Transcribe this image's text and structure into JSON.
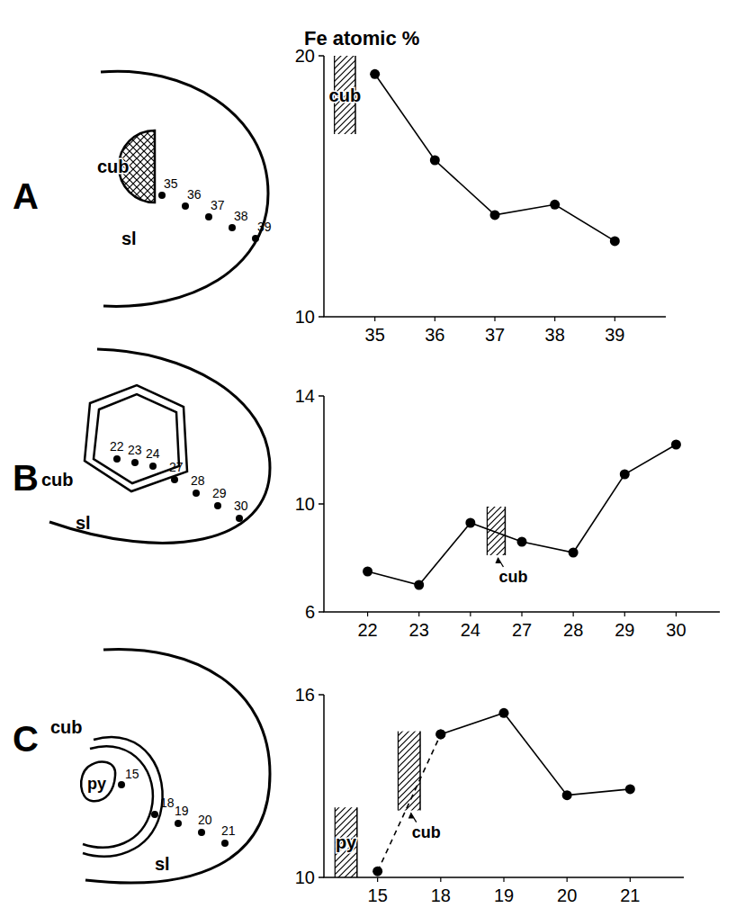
{
  "header": {
    "title": "Fe atomic %"
  },
  "chart_data": [
    {
      "type": "line",
      "categories": [
        "35",
        "36",
        "37",
        "38",
        "39"
      ],
      "values": [
        19.3,
        16.0,
        13.9,
        14.3,
        12.9
      ],
      "ylim": [
        10,
        20
      ],
      "yticks": [
        10,
        20
      ],
      "line_style": "solid",
      "marker": "circle",
      "annotations": [
        {
          "text": "cub",
          "x": -0.5,
          "y": [
            17,
            20
          ]
        }
      ]
    },
    {
      "type": "line",
      "categories": [
        "22",
        "23",
        "24",
        "27",
        "28",
        "29",
        "30"
      ],
      "values": [
        7.5,
        7.0,
        9.3,
        8.6,
        8.2,
        11.1,
        12.2
      ],
      "ylim": [
        6,
        14
      ],
      "yticks": [
        6,
        10,
        14
      ],
      "line_style": "solid",
      "marker": "circle",
      "annotations": [
        {
          "text": "cub",
          "x": 2.5,
          "y": [
            8.1,
            9.9
          ]
        }
      ]
    },
    {
      "type": "line",
      "categories": [
        "15",
        "18",
        "19",
        "20",
        "21"
      ],
      "series": [
        {
          "values": [
            10.2,
            14.7,
            null,
            null,
            null
          ],
          "line_style": "dashed",
          "marker": "circle"
        },
        {
          "values": [
            null,
            14.7,
            15.4,
            12.7,
            12.9
          ],
          "line_style": "solid",
          "marker": "circle"
        }
      ],
      "ylim": [
        10,
        16
      ],
      "yticks": [
        10,
        16
      ],
      "annotations": [
        {
          "text": "py",
          "x": -0.5,
          "y": [
            10,
            12.3
          ]
        },
        {
          "text": "cub",
          "x": 0.5,
          "y": [
            12.2,
            14.8
          ]
        }
      ]
    }
  ],
  "diagrams": [
    {
      "letter": "A",
      "inclusion": "cub",
      "matrix": "sl",
      "points": [
        "35",
        "36",
        "37",
        "38",
        "39"
      ]
    },
    {
      "letter": "B",
      "inclusion": "cub",
      "matrix": "sl",
      "points": [
        "22",
        "23",
        "24",
        "27",
        "28",
        "29",
        "30"
      ]
    },
    {
      "letter": "C",
      "inclusion": "cub",
      "core": "py",
      "matrix": "sl",
      "points": [
        "15",
        "18",
        "19",
        "20",
        "21"
      ]
    }
  ]
}
